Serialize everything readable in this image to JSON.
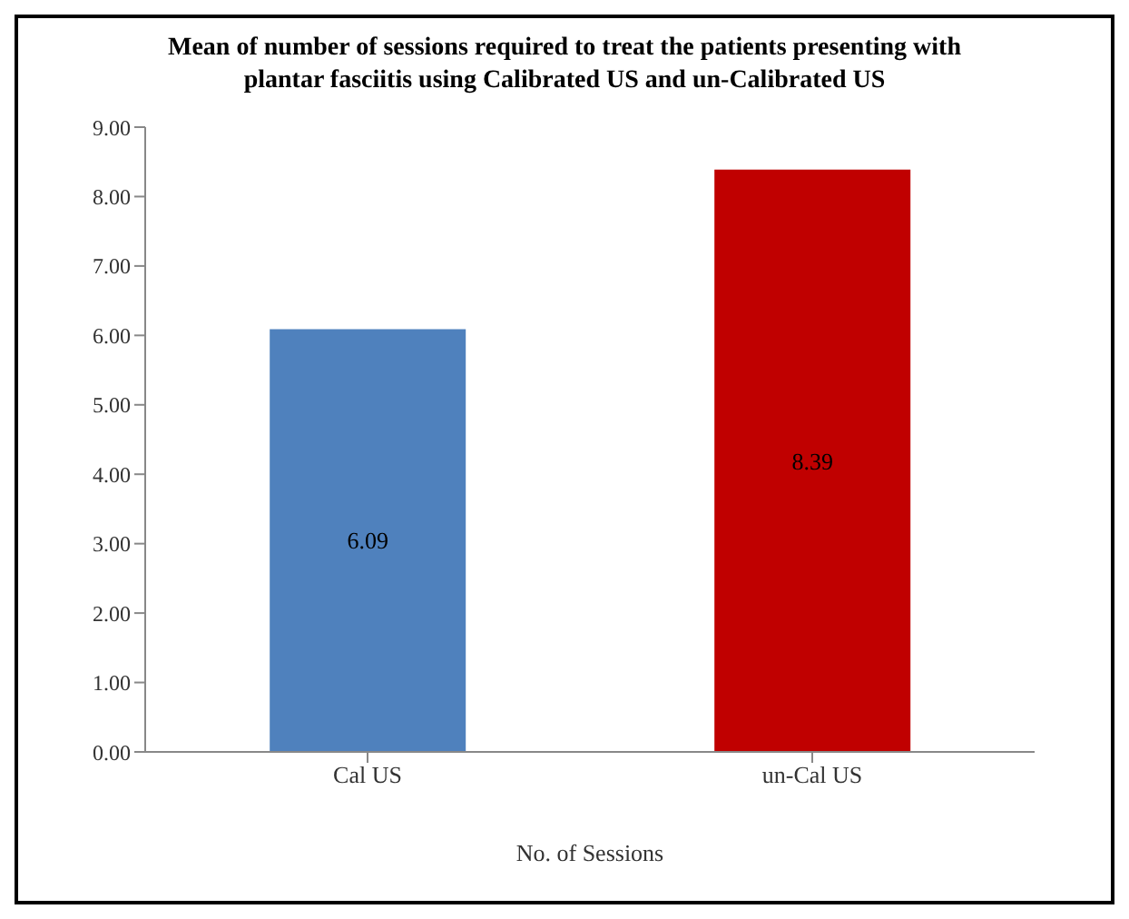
{
  "chart_data": {
    "type": "bar",
    "title": "Mean of number of sessions required to treat the patients  presenting with plantar fasciitis  using Calibrated US and un-Calibrated US",
    "categories": [
      "Cal US",
      "un-Cal US"
    ],
    "values": [
      6.09,
      8.39
    ],
    "colors": [
      "#4f81bd",
      "#c00000"
    ],
    "xlabel": "No. of Sessions",
    "ylim": [
      0,
      9
    ],
    "yticks": [
      {
        "value": 0,
        "label": "0.00"
      },
      {
        "value": 1,
        "label": "1.00"
      },
      {
        "value": 2,
        "label": "2.00"
      },
      {
        "value": 3,
        "label": "3.00"
      },
      {
        "value": 4,
        "label": "4.00"
      },
      {
        "value": 5,
        "label": "5.00"
      },
      {
        "value": 6,
        "label": "6.00"
      },
      {
        "value": 7,
        "label": "7.00"
      },
      {
        "value": 8,
        "label": "8.00"
      },
      {
        "value": 9,
        "label": "9.00"
      }
    ],
    "data_labels": true
  }
}
